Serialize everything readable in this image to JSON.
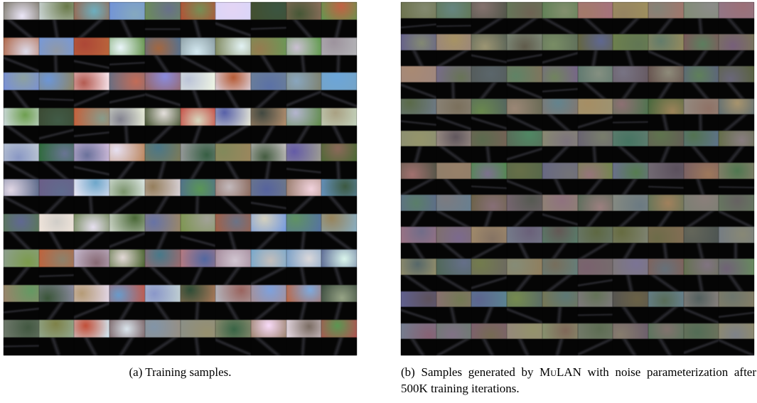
{
  "figure": {
    "panel_a": {
      "caption": "(a) Training samples."
    },
    "panel_b": {
      "caption_parts": [
        "(b) Samples generated by ",
        "MuLAN",
        " with noise parameterization after 500K training iterations."
      ]
    }
  }
}
